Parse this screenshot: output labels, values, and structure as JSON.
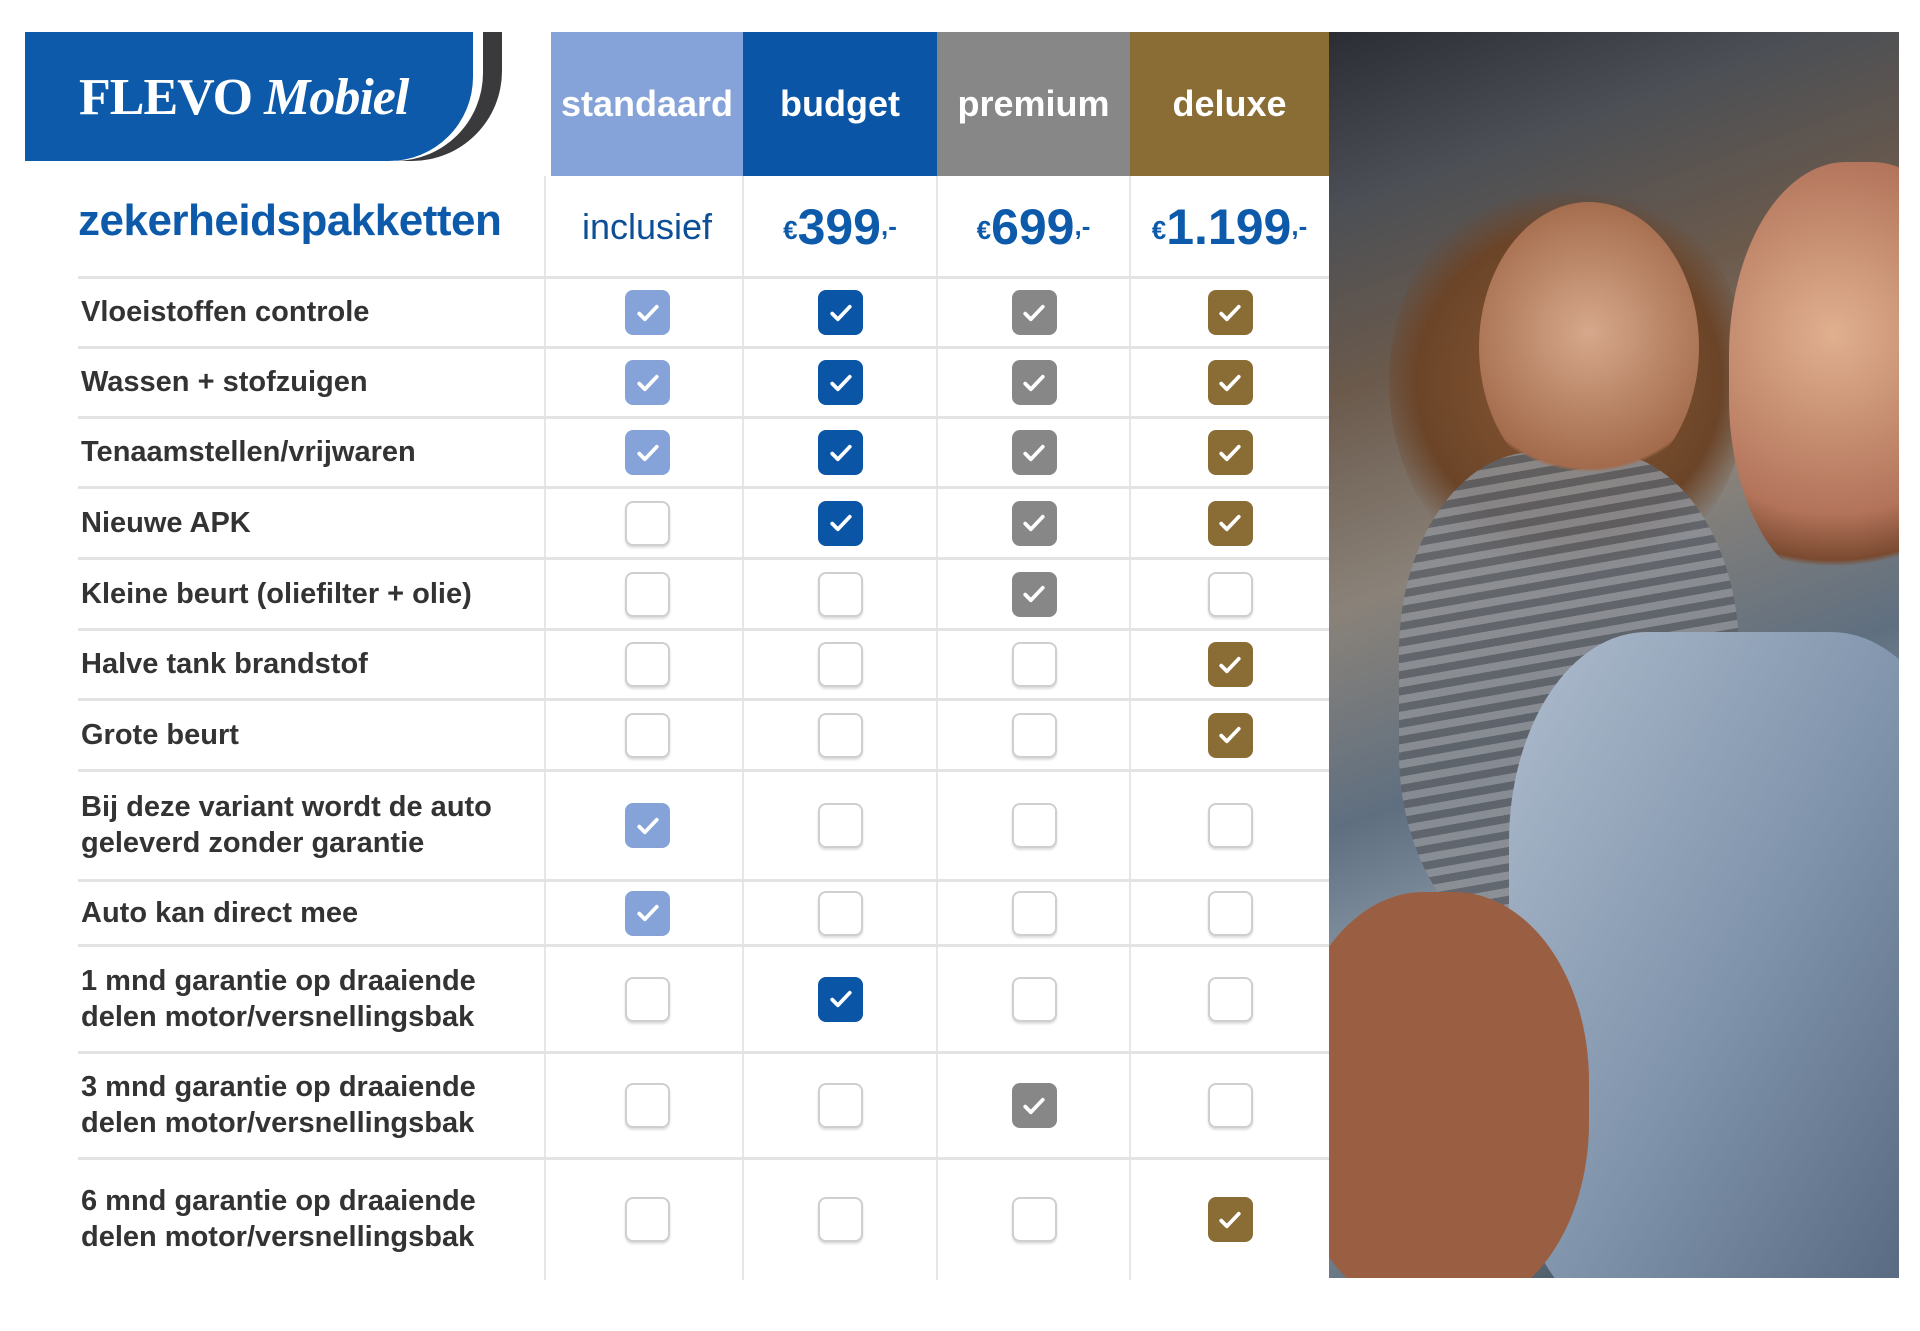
{
  "brand": {
    "name_part1": "FLEVO",
    "name_part2": "Mobiel"
  },
  "title": "zekerheidspakketten",
  "colors": {
    "brand_blue": "#0d5aab",
    "standaard": "#85a3d9",
    "budget": "#0a55a6",
    "premium": "#878787",
    "deluxe": "#8a6d35"
  },
  "packages": [
    {
      "name": "standaard",
      "price_text": "inclusief",
      "currency": "",
      "amount": "",
      "suffix": ""
    },
    {
      "name": "budget",
      "price_text": "",
      "currency": "€",
      "amount": "399",
      "suffix": ",-"
    },
    {
      "name": "premium",
      "price_text": "",
      "currency": "€",
      "amount": "699",
      "suffix": ",-"
    },
    {
      "name": "deluxe",
      "price_text": "",
      "currency": "€",
      "amount": "1.199",
      "suffix": ",-"
    }
  ],
  "features": [
    {
      "label": "Vloeistoffen controle",
      "included": [
        true,
        true,
        true,
        true
      ]
    },
    {
      "label": "Wassen + stofzuigen",
      "included": [
        true,
        true,
        true,
        true
      ]
    },
    {
      "label": "Tenaamstellen/vrijwaren",
      "included": [
        true,
        true,
        true,
        true
      ]
    },
    {
      "label": "Nieuwe APK",
      "included": [
        false,
        true,
        true,
        true
      ]
    },
    {
      "label": "Kleine beurt (oliefilter + olie)",
      "included": [
        false,
        false,
        true,
        false
      ]
    },
    {
      "label": "Halve tank brandstof",
      "included": [
        false,
        false,
        false,
        true
      ]
    },
    {
      "label": "Grote beurt",
      "included": [
        false,
        false,
        false,
        true
      ]
    },
    {
      "label": "Bij deze variant wordt de auto geleverd zonder garantie",
      "included": [
        true,
        false,
        false,
        false
      ]
    },
    {
      "label": "Auto kan direct mee",
      "included": [
        true,
        false,
        false,
        false
      ]
    },
    {
      "label": "1 mnd garantie op draaiende delen motor/versnellingsbak",
      "included": [
        false,
        true,
        false,
        false
      ]
    },
    {
      "label": "3 mnd garantie op draaiende delen motor/versnellingsbak",
      "included": [
        false,
        false,
        true,
        false
      ]
    },
    {
      "label": "6 mnd garantie op draaiende delen motor/versnellingsbak",
      "included": [
        false,
        false,
        false,
        true
      ]
    }
  ]
}
